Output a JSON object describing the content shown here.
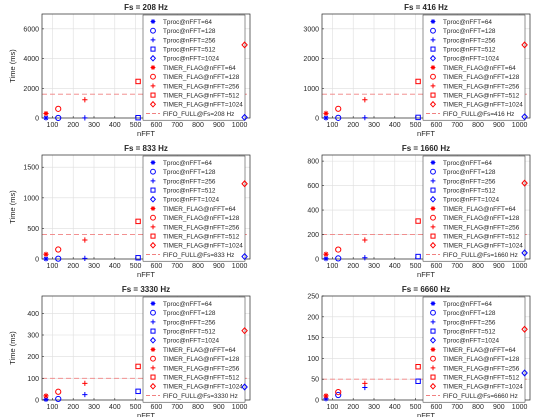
{
  "chart_data": [
    {
      "type": "scatter",
      "title": "Fs = 208 Hz",
      "xlabel": "nFFT",
      "ylabel": "Time (ms)",
      "xlim": [
        50,
        1050
      ],
      "ylim": [
        0,
        7000
      ],
      "xticks": [
        100,
        200,
        300,
        400,
        500,
        600,
        700,
        800,
        900,
        1000
      ],
      "yticks": [
        0,
        2000,
        4000,
        6000
      ],
      "grid": true,
      "legend_position": "top-right",
      "series": [
        {
          "name": "Tproc@nFFT=64",
          "x": [
            64
          ],
          "y": [
            3
          ],
          "marker": "asterisk",
          "color": "#0000ff"
        },
        {
          "name": "Tproc@nFFT=128",
          "x": [
            128
          ],
          "y": [
            5
          ],
          "marker": "circle",
          "color": "#0000ff"
        },
        {
          "name": "Tproc@nFFT=256",
          "x": [
            256
          ],
          "y": [
            10
          ],
          "marker": "plus",
          "color": "#0000ff"
        },
        {
          "name": "Tproc@nFFT=512",
          "x": [
            512
          ],
          "y": [
            20
          ],
          "marker": "square",
          "color": "#0000ff"
        },
        {
          "name": "Tproc@nFFT=1024",
          "x": [
            1024
          ],
          "y": [
            40
          ],
          "marker": "diamond",
          "color": "#0000ff"
        },
        {
          "name": "TIMER_FLAG@nFFT=64",
          "x": [
            64
          ],
          "y": [
            300
          ],
          "marker": "asterisk",
          "color": "#ff0000"
        },
        {
          "name": "TIMER_FLAG@nFFT=128",
          "x": [
            128
          ],
          "y": [
            615
          ],
          "marker": "circle",
          "color": "#ff0000"
        },
        {
          "name": "TIMER_FLAG@nFFT=256",
          "x": [
            256
          ],
          "y": [
            1230
          ],
          "marker": "plus",
          "color": "#ff0000"
        },
        {
          "name": "TIMER_FLAG@nFFT=512",
          "x": [
            512
          ],
          "y": [
            2460
          ],
          "marker": "square",
          "color": "#ff0000"
        },
        {
          "name": "TIMER_FLAG@nFFT=1024",
          "x": [
            1024
          ],
          "y": [
            4920
          ],
          "marker": "diamond",
          "color": "#ff0000"
        }
      ],
      "fifo": {
        "name": "FIFO_FULL@Fs=208 Hz",
        "y": 1600,
        "color": "#f08080"
      }
    },
    {
      "type": "scatter",
      "title": "Fs = 416 Hz",
      "xlabel": "nFFT",
      "ylabel": "",
      "xlim": [
        50,
        1050
      ],
      "ylim": [
        0,
        3500
      ],
      "xticks": [
        100,
        200,
        300,
        400,
        500,
        600,
        700,
        800,
        900,
        1000
      ],
      "yticks": [
        0,
        1000,
        2000,
        3000
      ],
      "grid": true,
      "legend_position": "top-right",
      "series": [
        {
          "name": "Tproc@nFFT=64",
          "x": [
            64
          ],
          "y": [
            3
          ],
          "marker": "asterisk",
          "color": "#0000ff"
        },
        {
          "name": "Tproc@nFFT=128",
          "x": [
            128
          ],
          "y": [
            5
          ],
          "marker": "circle",
          "color": "#0000ff"
        },
        {
          "name": "Tproc@nFFT=256",
          "x": [
            256
          ],
          "y": [
            10
          ],
          "marker": "plus",
          "color": "#0000ff"
        },
        {
          "name": "Tproc@nFFT=512",
          "x": [
            512
          ],
          "y": [
            20
          ],
          "marker": "square",
          "color": "#0000ff"
        },
        {
          "name": "Tproc@nFFT=1024",
          "x": [
            1024
          ],
          "y": [
            40
          ],
          "marker": "diamond",
          "color": "#0000ff"
        },
        {
          "name": "TIMER_FLAG@nFFT=64",
          "x": [
            64
          ],
          "y": [
            155
          ],
          "marker": "asterisk",
          "color": "#ff0000"
        },
        {
          "name": "TIMER_FLAG@nFFT=128",
          "x": [
            128
          ],
          "y": [
            310
          ],
          "marker": "circle",
          "color": "#ff0000"
        },
        {
          "name": "TIMER_FLAG@nFFT=256",
          "x": [
            256
          ],
          "y": [
            615
          ],
          "marker": "plus",
          "color": "#ff0000"
        },
        {
          "name": "TIMER_FLAG@nFFT=512",
          "x": [
            512
          ],
          "y": [
            1230
          ],
          "marker": "square",
          "color": "#ff0000"
        },
        {
          "name": "TIMER_FLAG@nFFT=1024",
          "x": [
            1024
          ],
          "y": [
            2460
          ],
          "marker": "diamond",
          "color": "#ff0000"
        }
      ],
      "fifo": {
        "name": "FIFO_FULL@Fs=416 Hz",
        "y": 800,
        "color": "#f08080"
      }
    },
    {
      "type": "scatter",
      "title": "Fs = 833 Hz",
      "xlabel": "nFFT",
      "ylabel": "Time (ms)",
      "xlim": [
        50,
        1050
      ],
      "ylim": [
        0,
        1700
      ],
      "xticks": [
        100,
        200,
        300,
        400,
        500,
        600,
        700,
        800,
        900,
        1000
      ],
      "yticks": [
        0,
        500,
        1000,
        1500
      ],
      "grid": true,
      "legend_position": "top-right",
      "series": [
        {
          "name": "Tproc@nFFT=64",
          "x": [
            64
          ],
          "y": [
            3
          ],
          "marker": "asterisk",
          "color": "#0000ff"
        },
        {
          "name": "Tproc@nFFT=128",
          "x": [
            128
          ],
          "y": [
            5
          ],
          "marker": "circle",
          "color": "#0000ff"
        },
        {
          "name": "Tproc@nFFT=256",
          "x": [
            256
          ],
          "y": [
            10
          ],
          "marker": "plus",
          "color": "#0000ff"
        },
        {
          "name": "Tproc@nFFT=512",
          "x": [
            512
          ],
          "y": [
            20
          ],
          "marker": "square",
          "color": "#0000ff"
        },
        {
          "name": "Tproc@nFFT=1024",
          "x": [
            1024
          ],
          "y": [
            40
          ],
          "marker": "diamond",
          "color": "#0000ff"
        },
        {
          "name": "TIMER_FLAG@nFFT=64",
          "x": [
            64
          ],
          "y": [
            77
          ],
          "marker": "asterisk",
          "color": "#ff0000"
        },
        {
          "name": "TIMER_FLAG@nFFT=128",
          "x": [
            128
          ],
          "y": [
            155
          ],
          "marker": "circle",
          "color": "#ff0000"
        },
        {
          "name": "TIMER_FLAG@nFFT=256",
          "x": [
            256
          ],
          "y": [
            310
          ],
          "marker": "plus",
          "color": "#ff0000"
        },
        {
          "name": "TIMER_FLAG@nFFT=512",
          "x": [
            512
          ],
          "y": [
            615
          ],
          "marker": "square",
          "color": "#ff0000"
        },
        {
          "name": "TIMER_FLAG@nFFT=1024",
          "x": [
            1024
          ],
          "y": [
            1230
          ],
          "marker": "diamond",
          "color": "#ff0000"
        }
      ],
      "fifo": {
        "name": "FIFO_FULL@Fs=833 Hz",
        "y": 400,
        "color": "#f08080"
      }
    },
    {
      "type": "scatter",
      "title": "Fs = 1660 Hz",
      "xlabel": "nFFT",
      "ylabel": "",
      "xlim": [
        50,
        1050
      ],
      "ylim": [
        0,
        850
      ],
      "xticks": [
        100,
        200,
        300,
        400,
        500,
        600,
        700,
        800,
        900,
        1000
      ],
      "yticks": [
        0,
        200,
        400,
        600,
        800
      ],
      "grid": true,
      "legend_position": "top-right",
      "series": [
        {
          "name": "Tproc@nFFT=64",
          "x": [
            64
          ],
          "y": [
            3
          ],
          "marker": "asterisk",
          "color": "#0000ff"
        },
        {
          "name": "Tproc@nFFT=128",
          "x": [
            128
          ],
          "y": [
            5
          ],
          "marker": "circle",
          "color": "#0000ff"
        },
        {
          "name": "Tproc@nFFT=256",
          "x": [
            256
          ],
          "y": [
            10
          ],
          "marker": "plus",
          "color": "#0000ff"
        },
        {
          "name": "Tproc@nFFT=512",
          "x": [
            512
          ],
          "y": [
            20
          ],
          "marker": "square",
          "color": "#0000ff"
        },
        {
          "name": "Tproc@nFFT=1024",
          "x": [
            1024
          ],
          "y": [
            50
          ],
          "marker": "diamond",
          "color": "#0000ff"
        },
        {
          "name": "TIMER_FLAG@nFFT=64",
          "x": [
            64
          ],
          "y": [
            39
          ],
          "marker": "asterisk",
          "color": "#ff0000"
        },
        {
          "name": "TIMER_FLAG@nFFT=128",
          "x": [
            128
          ],
          "y": [
            77
          ],
          "marker": "circle",
          "color": "#ff0000"
        },
        {
          "name": "TIMER_FLAG@nFFT=256",
          "x": [
            256
          ],
          "y": [
            155
          ],
          "marker": "plus",
          "color": "#ff0000"
        },
        {
          "name": "TIMER_FLAG@nFFT=512",
          "x": [
            512
          ],
          "y": [
            310
          ],
          "marker": "square",
          "color": "#ff0000"
        },
        {
          "name": "TIMER_FLAG@nFFT=1024",
          "x": [
            1024
          ],
          "y": [
            620
          ],
          "marker": "diamond",
          "color": "#ff0000"
        }
      ],
      "fifo": {
        "name": "FIFO_FULL@Fs=1660 Hz",
        "y": 200,
        "color": "#f08080"
      }
    },
    {
      "type": "scatter",
      "title": "Fs = 3330 Hz",
      "xlabel": "nFFT",
      "ylabel": "Time (ms)",
      "xlim": [
        50,
        1050
      ],
      "ylim": [
        0,
        480
      ],
      "xticks": [
        100,
        200,
        300,
        400,
        500,
        600,
        700,
        800,
        900,
        1000
      ],
      "yticks": [
        0,
        100,
        200,
        300,
        400
      ],
      "grid": true,
      "legend_position": "top-right",
      "series": [
        {
          "name": "Tproc@nFFT=64",
          "x": [
            64
          ],
          "y": [
            3
          ],
          "marker": "asterisk",
          "color": "#0000ff"
        },
        {
          "name": "Tproc@nFFT=128",
          "x": [
            128
          ],
          "y": [
            5
          ],
          "marker": "circle",
          "color": "#0000ff"
        },
        {
          "name": "Tproc@nFFT=256",
          "x": [
            256
          ],
          "y": [
            25
          ],
          "marker": "plus",
          "color": "#0000ff"
        },
        {
          "name": "Tproc@nFFT=512",
          "x": [
            512
          ],
          "y": [
            40
          ],
          "marker": "square",
          "color": "#0000ff"
        },
        {
          "name": "Tproc@nFFT=1024",
          "x": [
            1024
          ],
          "y": [
            60
          ],
          "marker": "diamond",
          "color": "#0000ff"
        },
        {
          "name": "TIMER_FLAG@nFFT=64",
          "x": [
            64
          ],
          "y": [
            19
          ],
          "marker": "asterisk",
          "color": "#ff0000"
        },
        {
          "name": "TIMER_FLAG@nFFT=128",
          "x": [
            128
          ],
          "y": [
            38
          ],
          "marker": "circle",
          "color": "#ff0000"
        },
        {
          "name": "TIMER_FLAG@nFFT=256",
          "x": [
            256
          ],
          "y": [
            77
          ],
          "marker": "plus",
          "color": "#ff0000"
        },
        {
          "name": "TIMER_FLAG@nFFT=512",
          "x": [
            512
          ],
          "y": [
            155
          ],
          "marker": "square",
          "color": "#ff0000"
        },
        {
          "name": "TIMER_FLAG@nFFT=1024",
          "x": [
            1024
          ],
          "y": [
            320
          ],
          "marker": "diamond",
          "color": "#ff0000"
        }
      ],
      "fifo": {
        "name": "FIFO_FULL@Fs=3330 Hz",
        "y": 100,
        "color": "#f08080"
      }
    },
    {
      "type": "scatter",
      "title": "Fs = 6660 Hz",
      "xlabel": "nFFT",
      "ylabel": "",
      "xlim": [
        50,
        1050
      ],
      "ylim": [
        0,
        250
      ],
      "xticks": [
        100,
        200,
        300,
        400,
        500,
        600,
        700,
        800,
        900,
        1000
      ],
      "yticks": [
        0,
        50,
        100,
        150,
        200,
        250
      ],
      "grid": true,
      "legend_position": "top-right",
      "series": [
        {
          "name": "Tproc@nFFT=64",
          "x": [
            64
          ],
          "y": [
            3
          ],
          "marker": "asterisk",
          "color": "#0000ff"
        },
        {
          "name": "Tproc@nFFT=128",
          "x": [
            128
          ],
          "y": [
            12
          ],
          "marker": "circle",
          "color": "#0000ff"
        },
        {
          "name": "Tproc@nFFT=256",
          "x": [
            256
          ],
          "y": [
            30
          ],
          "marker": "plus",
          "color": "#0000ff"
        },
        {
          "name": "Tproc@nFFT=512",
          "x": [
            512
          ],
          "y": [
            45
          ],
          "marker": "square",
          "color": "#0000ff"
        },
        {
          "name": "Tproc@nFFT=1024",
          "x": [
            1024
          ],
          "y": [
            65
          ],
          "marker": "diamond",
          "color": "#0000ff"
        },
        {
          "name": "TIMER_FLAG@nFFT=64",
          "x": [
            64
          ],
          "y": [
            10
          ],
          "marker": "asterisk",
          "color": "#ff0000"
        },
        {
          "name": "TIMER_FLAG@nFFT=128",
          "x": [
            128
          ],
          "y": [
            19
          ],
          "marker": "circle",
          "color": "#ff0000"
        },
        {
          "name": "TIMER_FLAG@nFFT=256",
          "x": [
            256
          ],
          "y": [
            40
          ],
          "marker": "plus",
          "color": "#ff0000"
        },
        {
          "name": "TIMER_FLAG@nFFT=512",
          "x": [
            512
          ],
          "y": [
            80
          ],
          "marker": "square",
          "color": "#ff0000"
        },
        {
          "name": "TIMER_FLAG@nFFT=1024",
          "x": [
            1024
          ],
          "y": [
            170
          ],
          "marker": "diamond",
          "color": "#ff0000"
        }
      ],
      "fifo": {
        "name": "FIFO_FULL@Fs=6660 Hz",
        "y": 50,
        "color": "#f08080"
      }
    }
  ]
}
